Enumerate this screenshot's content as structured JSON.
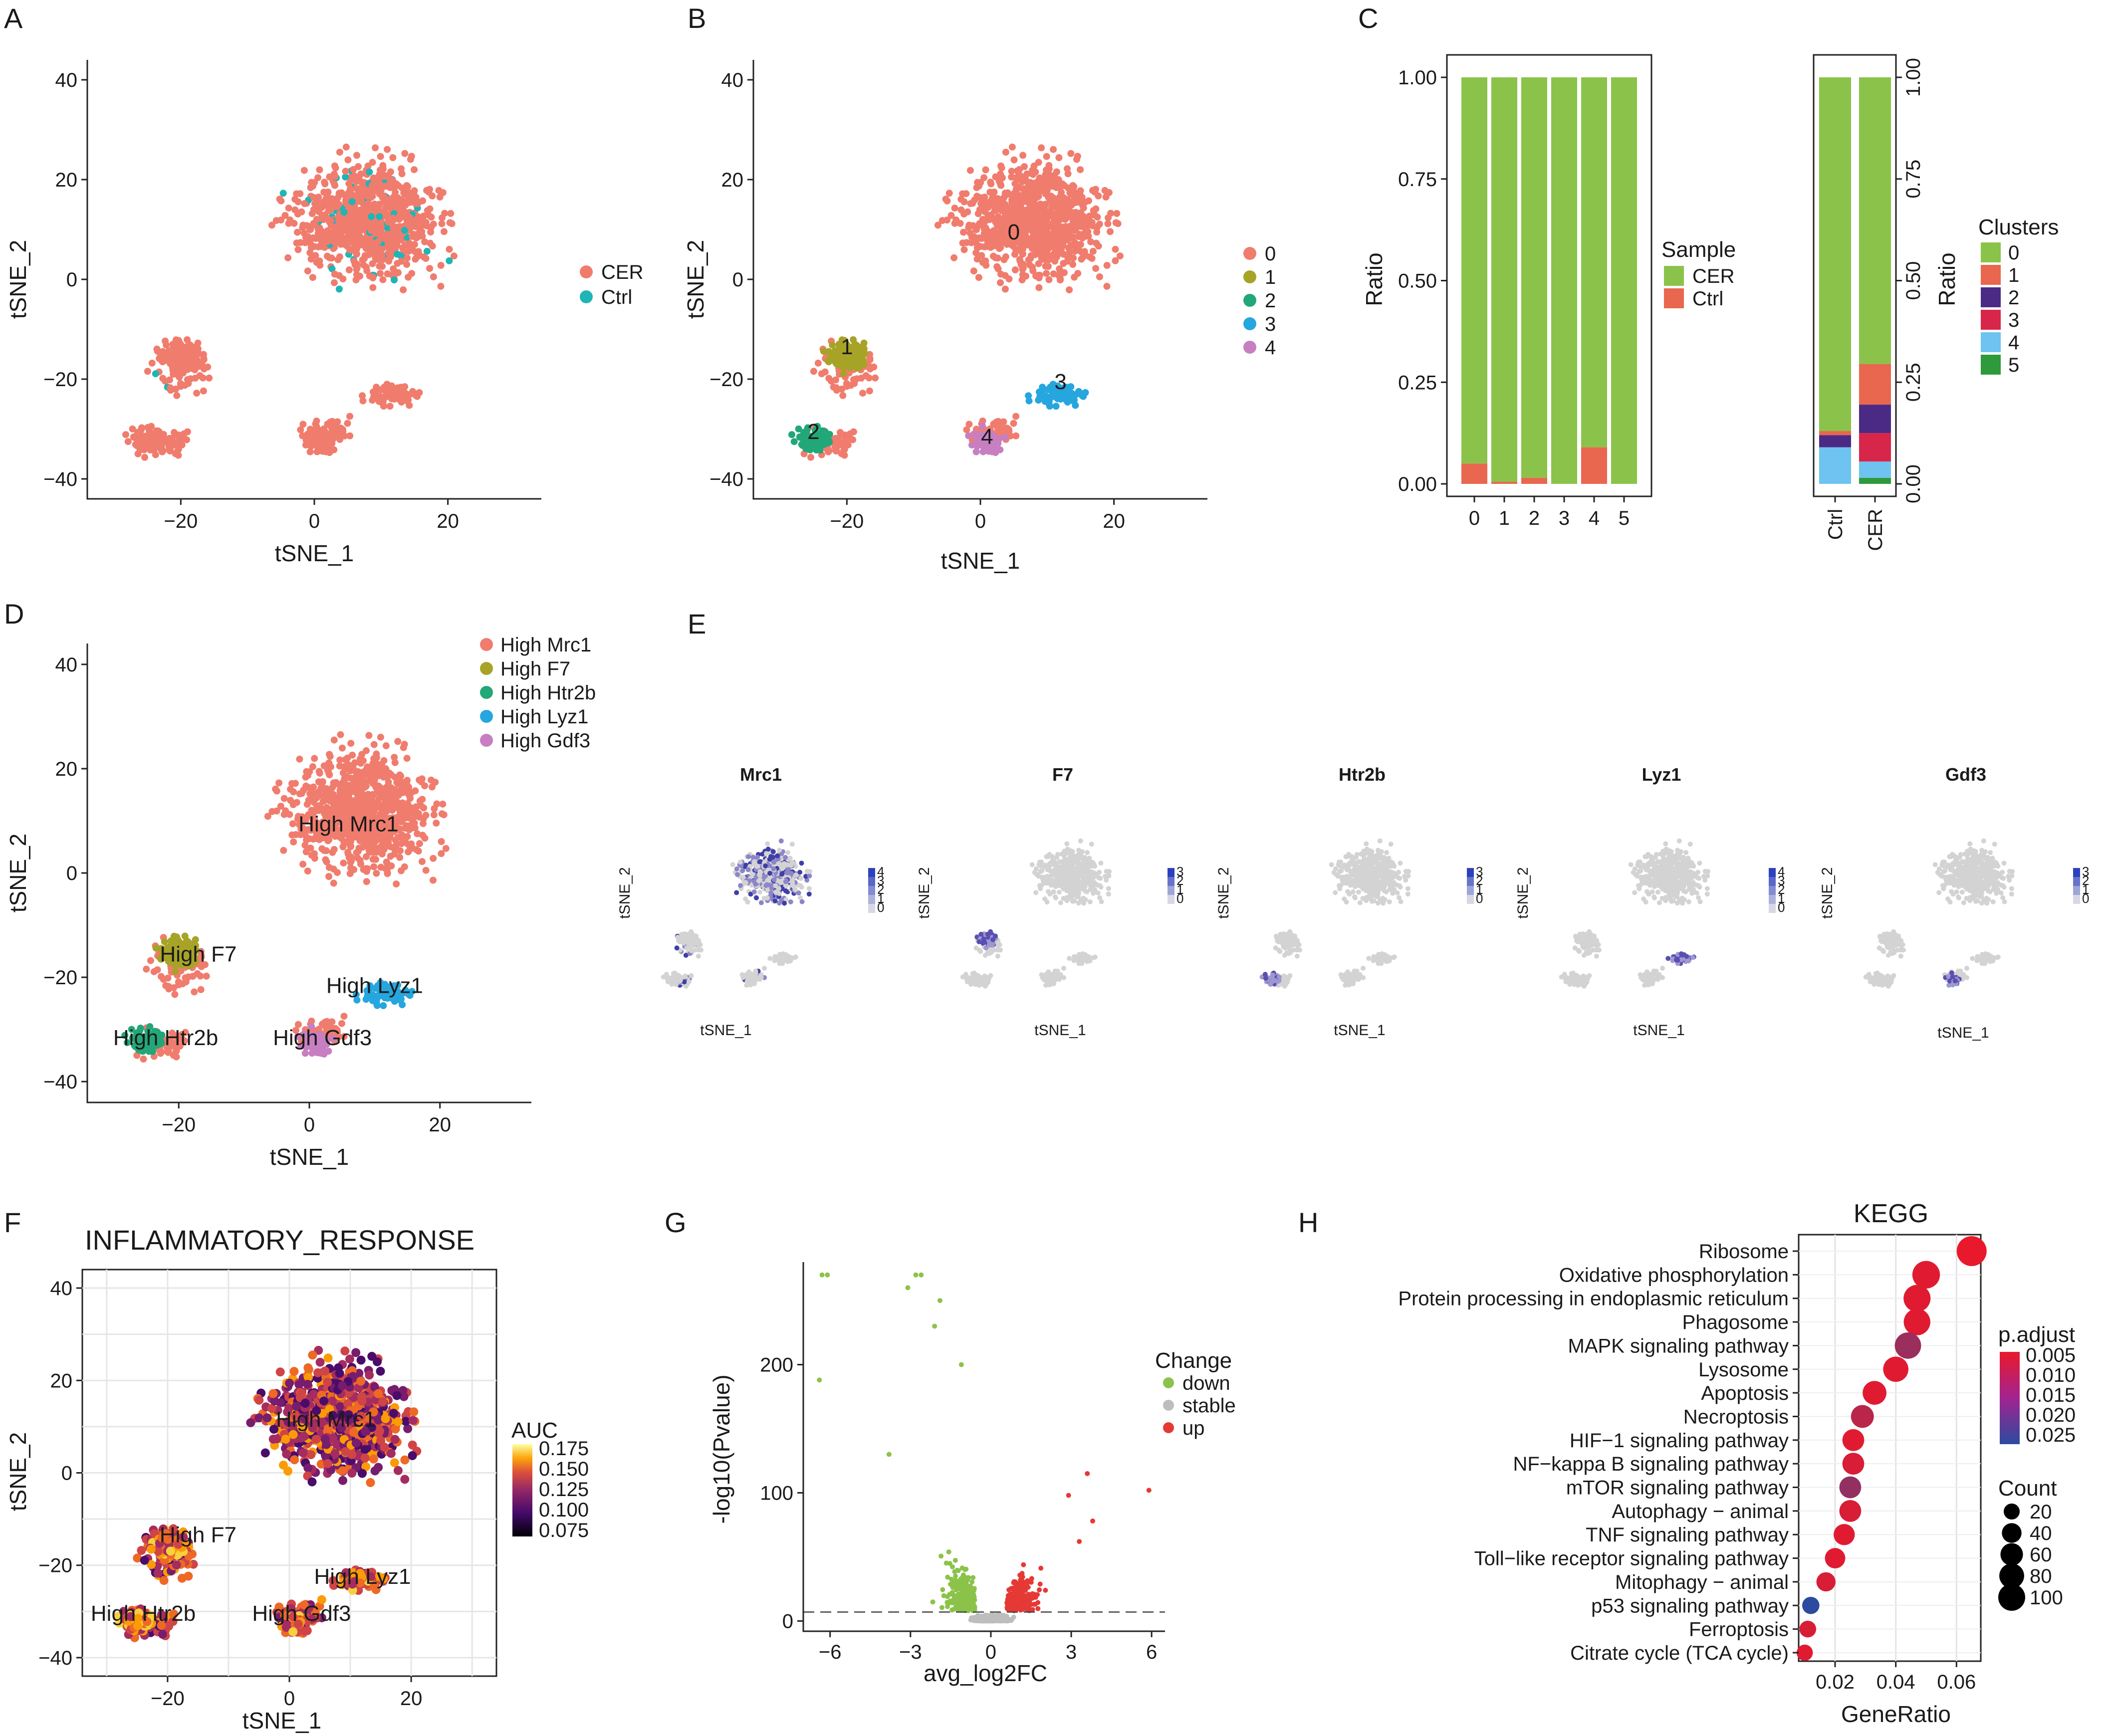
{
  "colors": {
    "cer": "#F07C6E",
    "ctrl": "#1FB5B5",
    "c0": "#F07C6E",
    "c1": "#A7A327",
    "c2": "#22A778",
    "c3": "#26A6DE",
    "c4": "#C77FC2",
    "bar_cer": "#8BC34A",
    "bar_ctrl": "#E8674E",
    "k0": "#8BC34A",
    "k1": "#E8674E",
    "k2": "#4B2A86",
    "k3": "#D8264A",
    "k4": "#6EC3F0",
    "k5": "#2E9A3C",
    "down": "#8BC34A",
    "stable": "#BDBDBD",
    "up": "#E53935"
  },
  "panels": {
    "A": {
      "label": "A"
    },
    "B": {
      "label": "B"
    },
    "C": {
      "label": "C"
    },
    "D": {
      "label": "D"
    },
    "E": {
      "label": "E"
    },
    "F": {
      "label": "F"
    },
    "G": {
      "label": "G"
    },
    "H": {
      "label": "H"
    }
  },
  "chart_data": [
    {
      "id": "A",
      "type": "scatter",
      "title": "",
      "xlabel": "tSNE_1",
      "ylabel": "tSNE_2",
      "xlim": [
        -34,
        34
      ],
      "ylim": [
        -44,
        44
      ],
      "xticks": [
        "-20",
        "0",
        "20"
      ],
      "xtick_values": [
        -20,
        0,
        20
      ],
      "yticks": [
        "40",
        "20",
        "0",
        "-20",
        "-40"
      ],
      "ytick_values": [
        40,
        20,
        0,
        -20,
        -40
      ],
      "legend": [
        {
          "name": "CER",
          "color": "#F07C6E"
        },
        {
          "name": "Ctrl",
          "color": "#1FB5B5"
        }
      ]
    },
    {
      "id": "B",
      "type": "scatter",
      "title": "",
      "xlabel": "tSNE_1",
      "ylabel": "tSNE_2",
      "xlim": [
        -34,
        34
      ],
      "ylim": [
        -44,
        44
      ],
      "xticks": [
        "-20",
        "0",
        "20"
      ],
      "xtick_values": [
        -20,
        0,
        20
      ],
      "yticks": [
        "40",
        "20",
        "0",
        "-20",
        "-40"
      ],
      "ytick_values": [
        40,
        20,
        0,
        -20,
        -40
      ],
      "legend": [
        {
          "name": "0"
        },
        {
          "name": "1"
        },
        {
          "name": "2"
        },
        {
          "name": "3"
        },
        {
          "name": "4"
        }
      ],
      "cluster_labels": [
        {
          "text": "0",
          "x": 5,
          "y": 8
        },
        {
          "text": "1",
          "x": -20,
          "y": -15
        },
        {
          "text": "2",
          "x": -25,
          "y": -32
        },
        {
          "text": "3",
          "x": 12,
          "y": -22
        },
        {
          "text": "4",
          "x": 1,
          "y": -33
        }
      ]
    },
    {
      "id": "C1",
      "type": "bar",
      "stacked": true,
      "ylabel": "Ratio",
      "ylim": [
        0,
        1
      ],
      "categories": [
        "0",
        "1",
        "2",
        "3",
        "4",
        "5"
      ],
      "yticks": [
        "1.00",
        "0.75",
        "0.50",
        "0.25",
        "0.00"
      ],
      "ytick_values": [
        1,
        0.75,
        0.5,
        0.25,
        0
      ],
      "series": [
        {
          "name": "Ctrl",
          "values": [
            0.05,
            0.005,
            0.015,
            0.0,
            0.09,
            0.0
          ]
        },
        {
          "name": "CER",
          "values": [
            0.95,
            0.995,
            0.985,
            1.0,
            0.91,
            1.0
          ]
        }
      ],
      "legend_title": "Sample",
      "legend": [
        "CER",
        "Ctrl"
      ]
    },
    {
      "id": "C2",
      "type": "bar",
      "stacked": true,
      "ylabel": "Ratio",
      "ylim": [
        0,
        1
      ],
      "categories": [
        "Ctrl",
        "CER"
      ],
      "yticks": [
        "1.00",
        "0.75",
        "0.50",
        "0.25",
        "0.00"
      ],
      "ytick_values": [
        1,
        0.75,
        0.5,
        0.25,
        0
      ],
      "series": [
        {
          "name": "5",
          "values": [
            0.0,
            0.015
          ]
        },
        {
          "name": "4",
          "values": [
            0.09,
            0.04
          ]
        },
        {
          "name": "3",
          "values": [
            0.0,
            0.07
          ]
        },
        {
          "name": "2",
          "values": [
            0.03,
            0.07
          ]
        },
        {
          "name": "1",
          "values": [
            0.01,
            0.1
          ]
        },
        {
          "name": "0",
          "values": [
            0.87,
            0.705
          ]
        }
      ],
      "legend_title": "Clusters",
      "legend": [
        "0",
        "1",
        "2",
        "3",
        "4",
        "5"
      ]
    },
    {
      "id": "D",
      "type": "scatter",
      "title": "",
      "xlabel": "tSNE_1",
      "ylabel": "tSNE_2",
      "xlim": [
        -34,
        34
      ],
      "ylim": [
        -44,
        44
      ],
      "xticks": [
        "-20",
        "0",
        "20"
      ],
      "xtick_values": [
        -20,
        0,
        20
      ],
      "yticks": [
        "40",
        "20",
        "0",
        "-20",
        "-40"
      ],
      "ytick_values": [
        40,
        20,
        0,
        -20,
        -40
      ],
      "legend": [
        {
          "name": "High Mrc1"
        },
        {
          "name": "High F7"
        },
        {
          "name": "High Htr2b"
        },
        {
          "name": "High Lyz1"
        },
        {
          "name": "High Gdf3"
        }
      ],
      "cluster_labels": [
        {
          "text": "High Mrc1",
          "x": 6,
          "y": 8
        },
        {
          "text": "High F7",
          "x": -17,
          "y": -17
        },
        {
          "text": "High Htr2b",
          "x": -22,
          "y": -33
        },
        {
          "text": "High Lyz1",
          "x": 10,
          "y": -23
        },
        {
          "text": "High Gdf3",
          "x": 2,
          "y": -33
        }
      ]
    },
    {
      "id": "E",
      "type": "scatter",
      "subplots": [
        {
          "gene": "Mrc1",
          "scale": [
            "4",
            "3",
            "2",
            "1",
            "0"
          ]
        },
        {
          "gene": "F7",
          "scale": [
            "3",
            "2",
            "1",
            "0"
          ]
        },
        {
          "gene": "Htr2b",
          "scale": [
            "3",
            "2",
            "1",
            "0"
          ]
        },
        {
          "gene": "Lyz1",
          "scale": [
            "4",
            "3",
            "2",
            "1",
            "0"
          ]
        },
        {
          "gene": "Gdf3",
          "scale": [
            "3",
            "2",
            "1",
            "0"
          ]
        }
      ],
      "xlabel": "tSNE_1",
      "ylabel": "tSNE_2"
    },
    {
      "id": "F",
      "type": "scatter",
      "title": "INFLAMMATORY_RESPONSE",
      "xlabel": "tSNE_1",
      "ylabel": "tSNE_2",
      "xlim": [
        -34,
        34
      ],
      "ylim": [
        -44,
        44
      ],
      "xticks": [
        "-20",
        "0",
        "20"
      ],
      "xtick_values": [
        -20,
        0,
        20
      ],
      "yticks": [
        "40",
        "20",
        "0",
        "-20",
        "-40"
      ],
      "ytick_values": [
        40,
        20,
        0,
        -20,
        -40
      ],
      "colorbar_title": "AUC",
      "colorbar_ticks": [
        "0.175",
        "0.150",
        "0.125",
        "0.100",
        "0.075"
      ],
      "cluster_labels": [
        {
          "text": "High Mrc1",
          "x": 6,
          "y": 10
        },
        {
          "text": "High F7",
          "x": -15,
          "y": -15
        },
        {
          "text": "High Htr2b",
          "x": -24,
          "y": -32
        },
        {
          "text": "High Lyz1",
          "x": 12,
          "y": -24
        },
        {
          "text": "High Gdf3",
          "x": 2,
          "y": -32
        }
      ]
    },
    {
      "id": "G",
      "type": "scatter",
      "title": "",
      "xlabel": "avg_log2FC",
      "ylabel": "-log10(Pvalue)",
      "xlim": [
        -7,
        6.5
      ],
      "ylim": [
        -8,
        280
      ],
      "xticks": [
        "-6",
        "-3",
        "0",
        "3",
        "6"
      ],
      "xtick_values": [
        -6,
        -3,
        0,
        3,
        6
      ],
      "yticks": [
        "200",
        "100",
        "0"
      ],
      "ytick_values": [
        200,
        100,
        0
      ],
      "threshold_y": 7,
      "legend_title": "Change",
      "legend": [
        "down",
        "stable",
        "up"
      ]
    },
    {
      "id": "H",
      "type": "scatter",
      "title": "KEGG",
      "xlabel": "GeneRatio",
      "xlim": [
        0.008,
        0.068
      ],
      "xticks": [
        "0.02",
        "0.04",
        "0.06"
      ],
      "xtick_values": [
        0.02,
        0.04,
        0.06
      ],
      "terms": [
        {
          "name": "Ribosome",
          "ratio": 0.065,
          "count": 100,
          "padj": 0.002
        },
        {
          "name": "Oxidative phosphorylation",
          "ratio": 0.05,
          "count": 80,
          "padj": 0.003
        },
        {
          "name": "Protein processing in endoplasmic reticulum",
          "ratio": 0.047,
          "count": 75,
          "padj": 0.003
        },
        {
          "name": "Phagosome",
          "ratio": 0.047,
          "count": 72,
          "padj": 0.003
        },
        {
          "name": "MAPK signaling pathway",
          "ratio": 0.044,
          "count": 70,
          "padj": 0.012
        },
        {
          "name": "Lysosome",
          "ratio": 0.04,
          "count": 62,
          "padj": 0.003
        },
        {
          "name": "Apoptosis",
          "ratio": 0.033,
          "count": 52,
          "padj": 0.003
        },
        {
          "name": "Necroptosis",
          "ratio": 0.029,
          "count": 46,
          "padj": 0.008
        },
        {
          "name": "HIF-1 signaling pathway",
          "ratio": 0.026,
          "count": 40,
          "padj": 0.003
        },
        {
          "name": "NF-kappa B signaling pathway",
          "ratio": 0.026,
          "count": 40,
          "padj": 0.004
        },
        {
          "name": "mTOR signaling pathway",
          "ratio": 0.025,
          "count": 40,
          "padj": 0.013
        },
        {
          "name": "Autophagy - animal",
          "ratio": 0.025,
          "count": 40,
          "padj": 0.004
        },
        {
          "name": "TNF signaling pathway",
          "ratio": 0.023,
          "count": 36,
          "padj": 0.003
        },
        {
          "name": "Toll-like receptor signaling pathway",
          "ratio": 0.02,
          "count": 32,
          "padj": 0.003
        },
        {
          "name": "Mitophagy - animal",
          "ratio": 0.017,
          "count": 26,
          "padj": 0.004
        },
        {
          "name": "p53 signaling pathway",
          "ratio": 0.012,
          "count": 18,
          "padj": 0.026
        },
        {
          "name": "Ferroptosis",
          "ratio": 0.011,
          "count": 16,
          "padj": 0.004
        },
        {
          "name": "Citrate cycle (TCA cycle)",
          "ratio": 0.01,
          "count": 14,
          "padj": 0.003
        }
      ],
      "padj_title": "p.adjust",
      "padj_ticks": [
        "0.005",
        "0.010",
        "0.015",
        "0.020",
        "0.025"
      ],
      "count_title": "Count",
      "count_ticks": [
        "20",
        "40",
        "60",
        "80",
        "100"
      ]
    }
  ]
}
